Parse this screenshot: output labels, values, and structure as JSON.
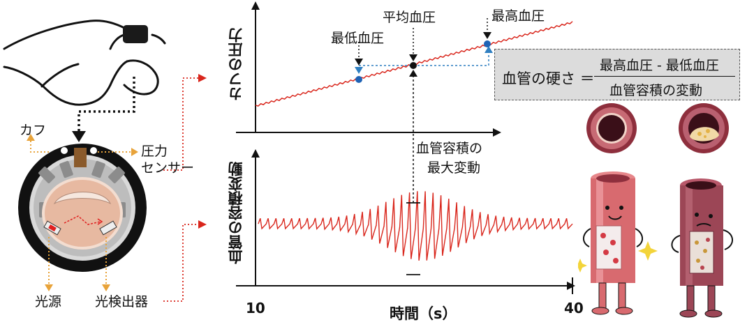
{
  "labels": {
    "cuff": "カフ",
    "pressure_sensor_line1": "圧力",
    "pressure_sensor_line2": "センサー",
    "light_source": "光源",
    "photodetector": "光検出器",
    "ylabel_top": "カフの圧力",
    "ylabel_bottom": "血管の容積変動",
    "min_bp": "最低血圧",
    "mean_bp": "平均血圧",
    "max_bp": "最高血圧",
    "max_volume_change_line1": "血管容積の",
    "max_volume_change_line2": "最大変動",
    "xlabel": "時間（s）",
    "x_tick_start": "10",
    "x_tick_end": "40"
  },
  "formula": {
    "lhs": "血管の硬さ ＝",
    "numerator": "最高血圧 - 最低血圧",
    "denominator": "血管容積の変動"
  },
  "colors": {
    "signal": "#d9261c",
    "marker_blue": "#1f63b5",
    "guide_blue": "#2f7fc1",
    "arrow_red": "#d9261c",
    "orange_arrow": "#e8a33a",
    "formula_bg": "#dcdcdc"
  },
  "chart_data": {
    "type": "line",
    "x": [
      10,
      40
    ],
    "xlabel": "時間（s）",
    "series": [
      {
        "values": [
          0.0,
          1.0
        ]
      }
    ],
    "markers": [
      "最低血圧",
      "平均血圧",
      "最高血圧"
    ]
  }
}
